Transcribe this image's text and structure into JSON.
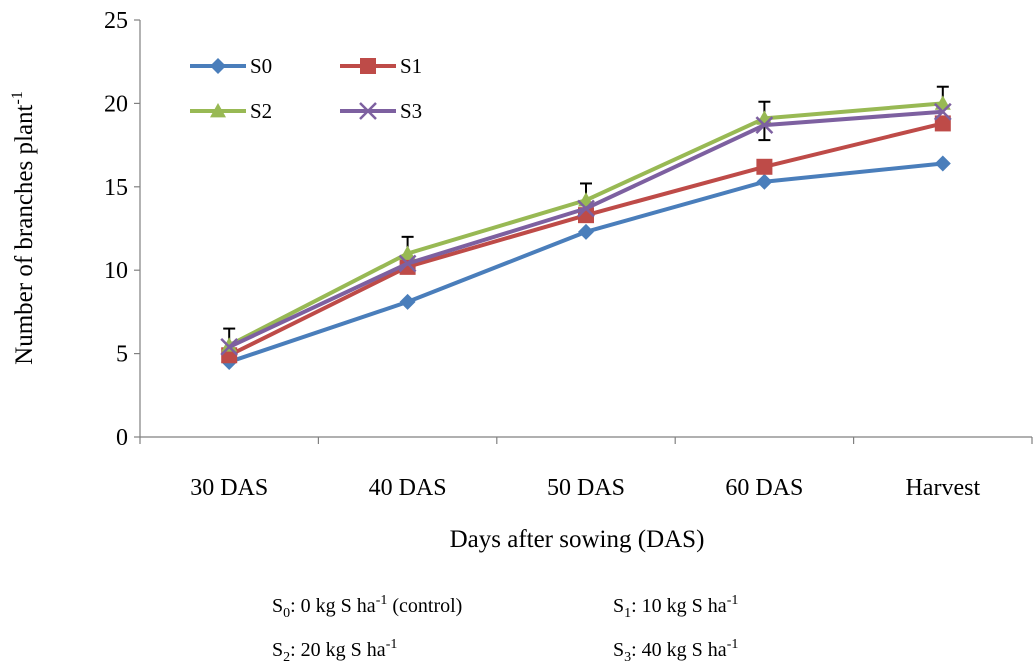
{
  "chart_data": {
    "type": "line",
    "categories": [
      "30 DAS",
      "40 DAS",
      "50 DAS",
      "60 DAS",
      "Harvest"
    ],
    "xlabel": "Days after  sowing (DAS)",
    "ylabel": {
      "text": "Number of branches plant",
      "sup": "-1"
    },
    "ylim": [
      0,
      25
    ],
    "yticks": [
      0,
      5,
      10,
      15,
      20,
      25
    ],
    "grid": false,
    "legend_position": "top-left",
    "series": [
      {
        "name": "S0",
        "color": "#4a7ebb",
        "marker": "diamond",
        "values": [
          4.5,
          8.1,
          12.3,
          15.3,
          16.4
        ]
      },
      {
        "name": "S1",
        "color": "#be4b48",
        "marker": "square",
        "values": [
          4.9,
          10.2,
          13.3,
          16.2,
          18.8
        ]
      },
      {
        "name": "S2",
        "color": "#98b954",
        "marker": "triangle",
        "values": [
          5.5,
          11.0,
          14.2,
          19.1,
          20.0
        ]
      },
      {
        "name": "S3",
        "color": "#7d60a0",
        "marker": "x",
        "values": [
          5.4,
          10.4,
          13.7,
          18.7,
          19.5
        ]
      }
    ],
    "error_bars": [
      {
        "upper": 6.5,
        "lower": null
      },
      {
        "upper": 12.0,
        "lower": null
      },
      {
        "upper": 15.2,
        "lower": null
      },
      {
        "upper": 20.1,
        "lower": 17.8
      },
      {
        "upper": 21.0,
        "lower": null
      }
    ],
    "footnotes": [
      {
        "main": "S",
        "sub": "0",
        "rest": ": 0 kg S ha",
        "sup": "-1",
        "tail": " (control)"
      },
      {
        "main": "S",
        "sub": "1",
        "rest": ": 10 kg S ha",
        "sup": "-1",
        "tail": ""
      },
      {
        "main": "S",
        "sub": "2",
        "rest": ": 20 kg S ha",
        "sup": "-1",
        "tail": ""
      },
      {
        "main": "S",
        "sub": "3",
        "rest": ": 40 kg S ha",
        "sup": "-1",
        "tail": ""
      }
    ]
  }
}
